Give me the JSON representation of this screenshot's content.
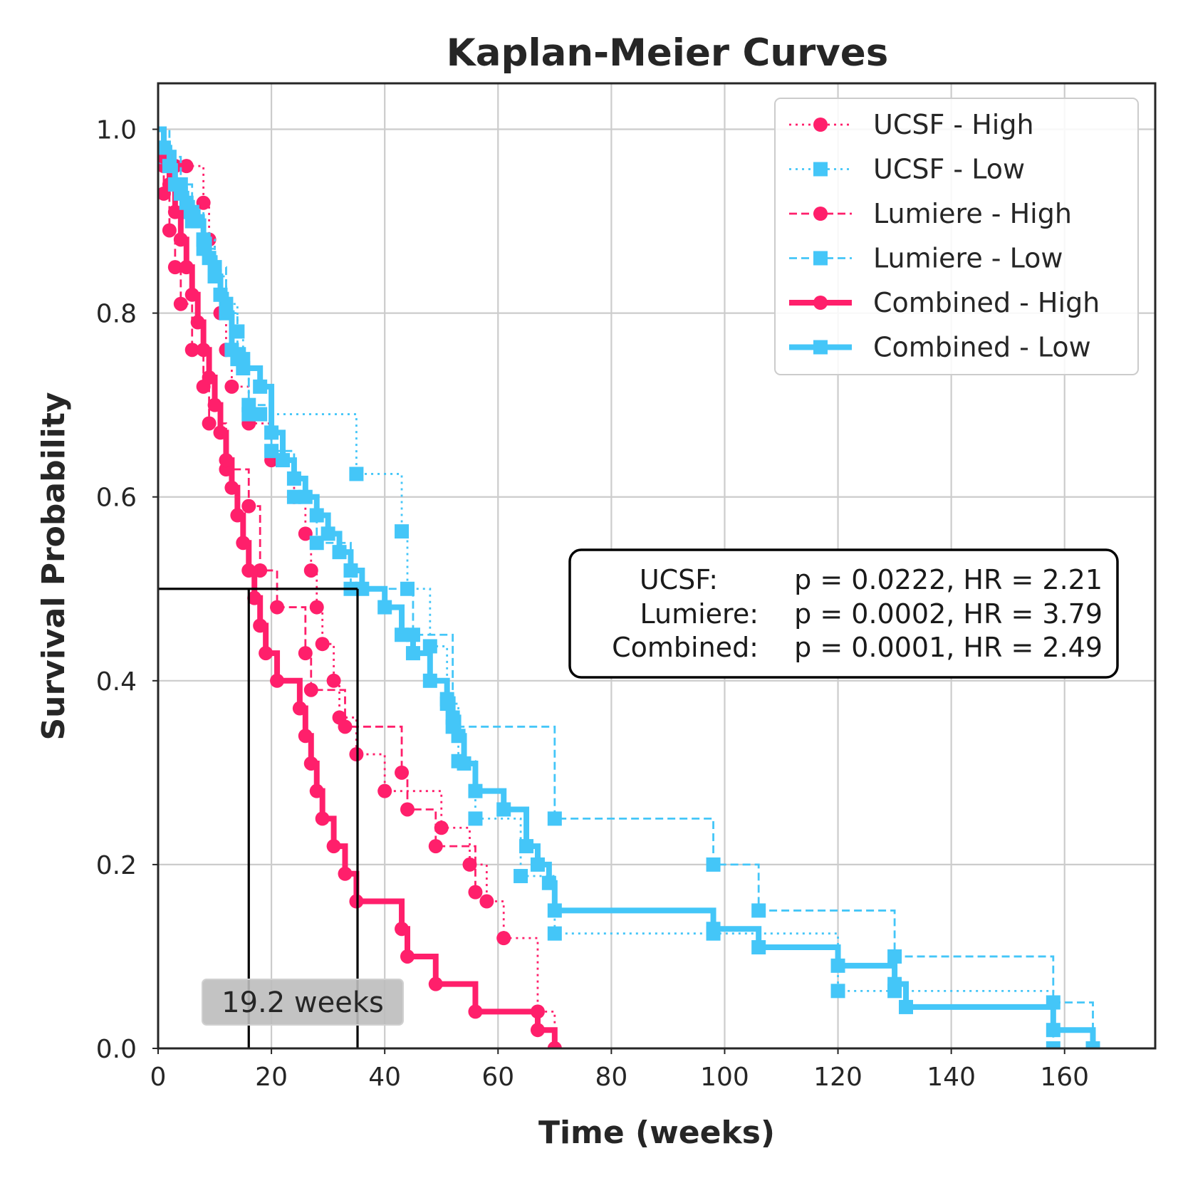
{
  "chart_data": {
    "type": "line",
    "subtype": "kaplan-meier step",
    "title": "Kaplan-Meier Curves",
    "xlabel": "Time (weeks)",
    "ylabel": "Survival Probability",
    "xlim": [
      0,
      176
    ],
    "ylim": [
      0,
      1.05
    ],
    "xticks": [
      0,
      20,
      40,
      60,
      80,
      100,
      120,
      140,
      160
    ],
    "yticks": [
      0.0,
      0.2,
      0.4,
      0.6,
      0.8,
      1.0
    ],
    "xtick_labels": [
      "0",
      "20",
      "40",
      "60",
      "80",
      "100",
      "120",
      "140",
      "160"
    ],
    "ytick_labels": [
      "0.0",
      "0.2",
      "0.4",
      "0.6",
      "0.8",
      "1.0"
    ],
    "grid": true,
    "legend_position": "top-right",
    "colors": {
      "high": "#ff1f6b",
      "low": "#44c6f8"
    },
    "series": [
      {
        "name": "UCSF - High",
        "group": "high",
        "linestyle": "dotted",
        "marker": "circle",
        "x": [
          0,
          1,
          3,
          5,
          8,
          9,
          10,
          11,
          12,
          13,
          16,
          20,
          24,
          26,
          27,
          28,
          29,
          31,
          32,
          35,
          40,
          50,
          55,
          58,
          61,
          67,
          70
        ],
        "y": [
          1.0,
          0.96,
          0.96,
          0.96,
          0.92,
          0.88,
          0.84,
          0.8,
          0.76,
          0.72,
          0.68,
          0.64,
          0.6,
          0.56,
          0.52,
          0.48,
          0.44,
          0.4,
          0.36,
          0.32,
          0.28,
          0.24,
          0.2,
          0.16,
          0.12,
          0.04,
          0.0
        ]
      },
      {
        "name": "UCSF - Low",
        "group": "low",
        "linestyle": "dotted",
        "marker": "square",
        "x": [
          0,
          1,
          3,
          5,
          8,
          10,
          12,
          14,
          15,
          16,
          18,
          35,
          43,
          44,
          48,
          51,
          53,
          56,
          64,
          70,
          98,
          120,
          130,
          158,
          165
        ],
        "y": [
          1.0,
          0.97,
          0.94,
          0.91,
          0.88,
          0.84,
          0.81,
          0.78,
          0.75,
          0.69,
          0.69,
          0.625,
          0.5625,
          0.5,
          0.4375,
          0.375,
          0.3125,
          0.25,
          0.1875,
          0.125,
          0.125,
          0.0625,
          0.0625,
          0.0,
          0.0
        ]
      },
      {
        "name": "Lumiere - High",
        "group": "high",
        "linestyle": "dashed",
        "marker": "circle",
        "x": [
          0,
          1,
          2,
          3,
          4,
          6,
          8,
          9,
          12,
          16,
          18,
          21,
          26,
          27,
          33,
          43,
          44,
          49,
          56
        ],
        "y": [
          0.97,
          0.93,
          0.89,
          0.85,
          0.81,
          0.76,
          0.72,
          0.68,
          0.63,
          0.59,
          0.52,
          0.48,
          0.43,
          0.39,
          0.35,
          0.3,
          0.26,
          0.22,
          0.17
        ]
      },
      {
        "name": "Lumiere - Low",
        "group": "low",
        "linestyle": "dashed",
        "marker": "square",
        "x": [
          0,
          2,
          4,
          6,
          8,
          10,
          12,
          14,
          16,
          20,
          24,
          28,
          34,
          45,
          52,
          70,
          98,
          106,
          130,
          158,
          165
        ],
        "y": [
          1.0,
          0.97,
          0.94,
          0.9,
          0.87,
          0.85,
          0.8,
          0.75,
          0.7,
          0.65,
          0.6,
          0.55,
          0.5,
          0.45,
          0.35,
          0.25,
          0.2,
          0.15,
          0.1,
          0.05,
          0.0
        ]
      },
      {
        "name": "Combined - High",
        "group": "high",
        "linestyle": "solid",
        "marker": "circle",
        "x": [
          0,
          1,
          2,
          3,
          4,
          5,
          6,
          7,
          8,
          9,
          10,
          11,
          12,
          13,
          14,
          15,
          16,
          17,
          18,
          19,
          21,
          25,
          26,
          27,
          28,
          29,
          31,
          33,
          35,
          43,
          44,
          49,
          56,
          67,
          70
        ],
        "y": [
          1.0,
          0.97,
          0.94,
          0.91,
          0.88,
          0.85,
          0.82,
          0.79,
          0.76,
          0.73,
          0.7,
          0.67,
          0.64,
          0.61,
          0.58,
          0.55,
          0.52,
          0.49,
          0.46,
          0.43,
          0.4,
          0.37,
          0.34,
          0.31,
          0.28,
          0.25,
          0.22,
          0.19,
          0.16,
          0.13,
          0.1,
          0.07,
          0.04,
          0.02,
          0.0
        ]
      },
      {
        "name": "Combined - Low",
        "group": "low",
        "linestyle": "solid",
        "marker": "square",
        "x": [
          0,
          1,
          2,
          3,
          4,
          5,
          6,
          7,
          8,
          9,
          10,
          11,
          12,
          13,
          15,
          18,
          20,
          22,
          24,
          26,
          28,
          30,
          32,
          34,
          36,
          40,
          43,
          45,
          48,
          51,
          52,
          53,
          54,
          56,
          61,
          65,
          67,
          69,
          70,
          98,
          106,
          120,
          130,
          132,
          158,
          165
        ],
        "y": [
          1.0,
          0.98,
          0.96,
          0.94,
          0.93,
          0.92,
          0.91,
          0.9,
          0.88,
          0.86,
          0.84,
          0.82,
          0.8,
          0.76,
          0.74,
          0.72,
          0.67,
          0.64,
          0.62,
          0.6,
          0.58,
          0.56,
          0.54,
          0.52,
          0.5,
          0.48,
          0.45,
          0.43,
          0.4,
          0.38,
          0.36,
          0.34,
          0.31,
          0.28,
          0.26,
          0.22,
          0.2,
          0.18,
          0.15,
          0.13,
          0.11,
          0.09,
          0.07,
          0.045,
          0.02,
          0.0
        ]
      }
    ],
    "stats": [
      {
        "label": "UCSF:",
        "text": "p = 0.0222, HR = 2.21"
      },
      {
        "label": "Lumiere:",
        "text": "p = 0.0002, HR = 3.79"
      },
      {
        "label": "Combined:",
        "text": "p = 0.0001, HR = 2.49"
      }
    ],
    "median_lines": {
      "y": 0.5,
      "x_values": [
        16,
        35.2
      ],
      "label": "19.2 weeks"
    }
  }
}
